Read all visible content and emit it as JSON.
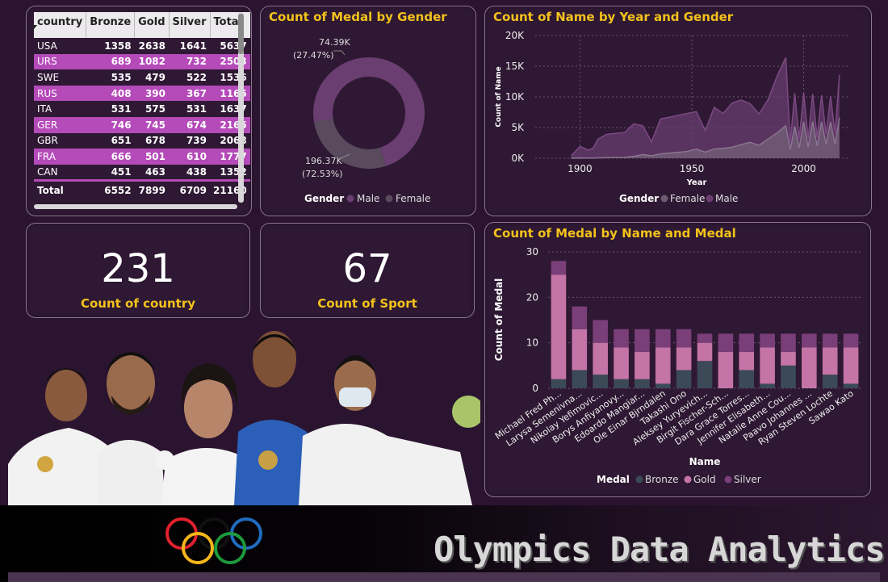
{
  "table": {
    "columns": [
      "country",
      "Bronze",
      "Gold",
      "Silver",
      "Total"
    ],
    "rows": [
      [
        "USA",
        "1358",
        "2638",
        "1641",
        "5637"
      ],
      [
        "URS",
        "689",
        "1082",
        "732",
        "2503"
      ],
      [
        "SWE",
        "535",
        "479",
        "522",
        "1536"
      ],
      [
        "RUS",
        "408",
        "390",
        "367",
        "1165"
      ],
      [
        "ITA",
        "531",
        "575",
        "531",
        "1637"
      ],
      [
        "GER",
        "746",
        "745",
        "674",
        "2165"
      ],
      [
        "GBR",
        "651",
        "678",
        "739",
        "2068"
      ],
      [
        "FRA",
        "666",
        "501",
        "610",
        "1777"
      ],
      [
        "CAN",
        "451",
        "463",
        "438",
        "1352"
      ]
    ],
    "total": [
      "Total",
      "6552",
      "7899",
      "6709",
      "21160"
    ]
  },
  "donut": {
    "title": "Count of Medal by Gender",
    "legend_title": "Gender",
    "chart_data": {
      "type": "pie",
      "slices": [
        {
          "name": "Male",
          "value": 196.37,
          "label": "196.37K",
          "pct": "(72.53%)",
          "color": "#6a3e70"
        },
        {
          "name": "Female",
          "value": 74.39,
          "label": "74.39K",
          "pct": "(27.47%)",
          "color": "#5a4a5e"
        }
      ]
    }
  },
  "area": {
    "title": "Count of Name by Year and Gender",
    "legend_title": "Gender",
    "legend": [
      {
        "name": "Female",
        "color": "#6f5a73"
      },
      {
        "name": "Male",
        "color": "#6a3e70"
      }
    ],
    "chart_data": {
      "type": "area",
      "xlabel": "Year",
      "ylabel": "Count of Name",
      "xlim": [
        1880,
        2020
      ],
      "ylim": [
        0,
        20000
      ],
      "x_ticks": [
        1900,
        1950,
        2000
      ],
      "y_ticks": [
        0,
        5000,
        10000,
        15000,
        20000
      ],
      "y_tick_labels": [
        "0K",
        "5K",
        "10K",
        "15K",
        "20K"
      ],
      "series": [
        {
          "name": "Male",
          "x": [
            1896,
            1900,
            1904,
            1906,
            1908,
            1912,
            1920,
            1924,
            1928,
            1932,
            1936,
            1948,
            1952,
            1956,
            1960,
            1964,
            1968,
            1972,
            1976,
            1980,
            1984,
            1988,
            1992,
            1994,
            1996,
            1998,
            2000,
            2002,
            2004,
            2006,
            2008,
            2010,
            2012,
            2014,
            2016
          ],
          "y": [
            380,
            1900,
            1300,
            1700,
            3100,
            3900,
            4200,
            5600,
            5300,
            2700,
            6400,
            7300,
            7600,
            4500,
            8300,
            7300,
            9000,
            9500,
            8900,
            7200,
            9500,
            13300,
            16400,
            2600,
            10600,
            3100,
            10700,
            3200,
            10500,
            3400,
            10300,
            3900,
            10100,
            4100,
            13600
          ]
        },
        {
          "name": "Female",
          "x": [
            1896,
            1900,
            1904,
            1906,
            1908,
            1912,
            1920,
            1924,
            1928,
            1932,
            1936,
            1948,
            1952,
            1956,
            1960,
            1964,
            1968,
            1972,
            1976,
            1980,
            1984,
            1988,
            1992,
            1994,
            1996,
            1998,
            2000,
            2002,
            2004,
            2006,
            2008,
            2010,
            2012,
            2014,
            2016
          ],
          "y": [
            0,
            30,
            20,
            10,
            50,
            80,
            120,
            300,
            600,
            400,
            700,
            1100,
            1500,
            1000,
            1500,
            1600,
            1800,
            2200,
            2600,
            2100,
            3100,
            4100,
            5300,
            1400,
            5200,
            1700,
            5900,
            1800,
            6000,
            2000,
            5900,
            2300,
            5900,
            2300,
            6600
          ]
        }
      ]
    }
  },
  "kpis": {
    "country": {
      "value": "231",
      "label": "Count of country"
    },
    "sport": {
      "value": "67",
      "label": "Count of Sport"
    }
  },
  "bar": {
    "title": "Count of Medal by Name and Medal",
    "legend_title": "Medal",
    "legend": [
      {
        "name": "Bronze",
        "color": "#3b4a56"
      },
      {
        "name": "Gold",
        "color": "#c474a6"
      },
      {
        "name": "Silver",
        "color": "#7a3e78"
      }
    ],
    "chart_data": {
      "type": "bar",
      "stacked": true,
      "xlabel": "Name",
      "ylabel": "Count of Medal",
      "ylim": [
        0,
        30
      ],
      "y_ticks": [
        0,
        10,
        20,
        30
      ],
      "categories": [
        "Michael Fred Ph...",
        "Larysa Semenivna...",
        "Nikolay Yefimovic...",
        "Borys Anfiyanovy...",
        "Edoardo Mangiar...",
        "Ole Einar Bjrndalen",
        "Takashi Ono",
        "Aleksey Yuryevich...",
        "Birgit Fischer-Sch...",
        "Dara Grace Torres...",
        "Jennifer Elisabeth...",
        "Natalie Anne Cou...",
        "Paavo Johannes ...",
        "Ryan Steven Lochte",
        "Sawao Kato"
      ],
      "series": [
        {
          "name": "Bronze",
          "values": [
            2,
            4,
            3,
            2,
            2,
            1,
            4,
            6,
            0,
            4,
            1,
            5,
            0,
            3,
            1
          ]
        },
        {
          "name": "Gold",
          "values": [
            23,
            9,
            7,
            7,
            6,
            8,
            5,
            4,
            8,
            4,
            8,
            3,
            9,
            6,
            8
          ]
        },
        {
          "name": "Silver",
          "values": [
            3,
            5,
            5,
            4,
            5,
            4,
            4,
            2,
            4,
            4,
            3,
            4,
            3,
            3,
            3
          ]
        }
      ]
    }
  },
  "footer": {
    "title": "Olympics Data Analytics"
  },
  "colors": {
    "accent": "#f3c21b",
    "background": "#2b1430",
    "row_highlight": "#b54ab9"
  }
}
